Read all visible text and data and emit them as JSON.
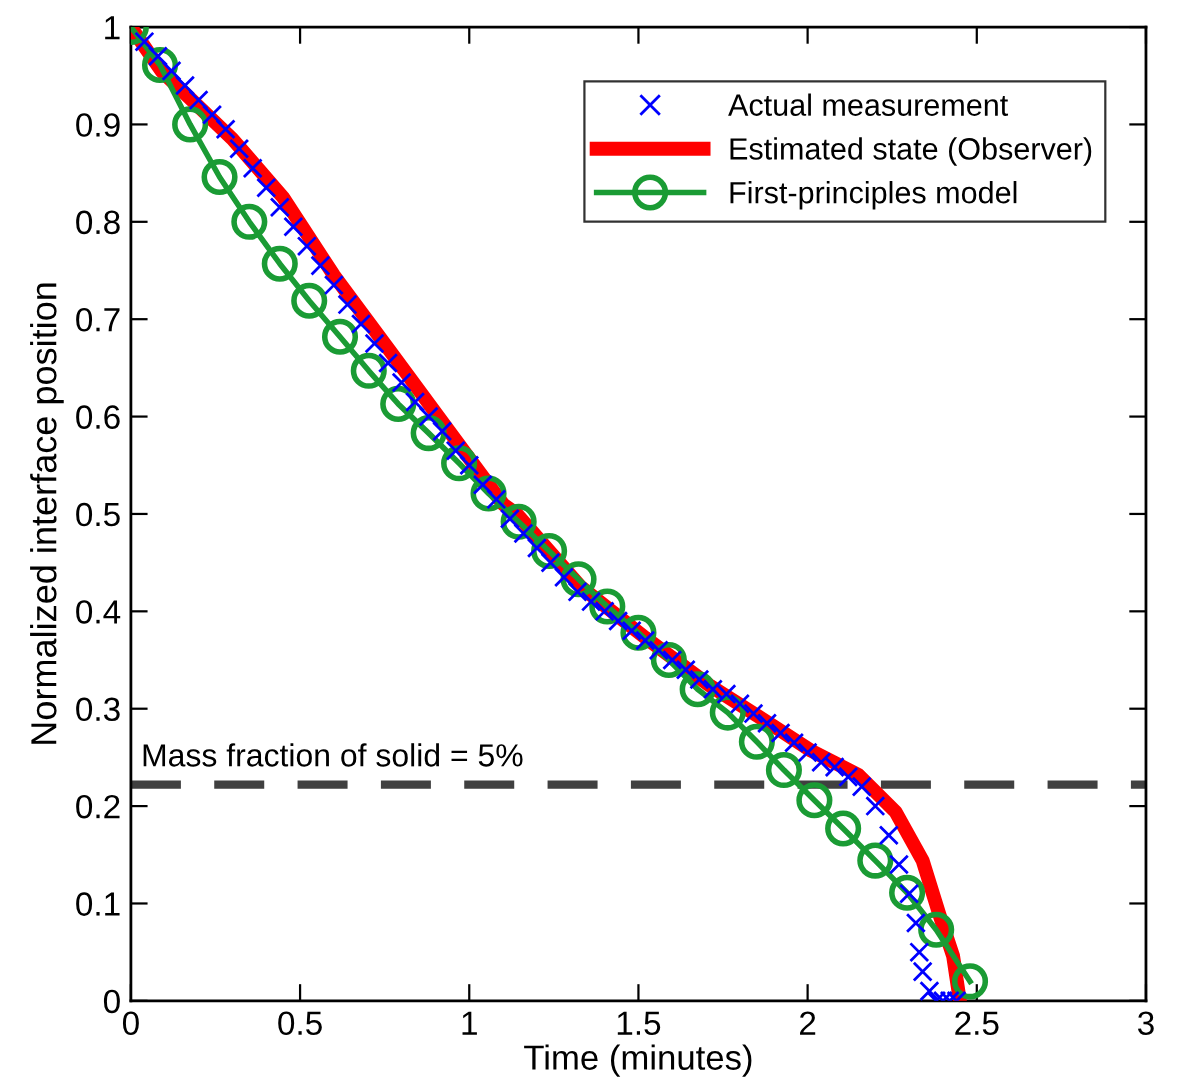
{
  "chart_data": {
    "type": "line",
    "xlabel": "Time (minutes)",
    "ylabel": "Normalized interface position",
    "xlim": [
      0,
      3
    ],
    "xticks": [
      0,
      0.5,
      1,
      1.5,
      2,
      2.5,
      3
    ],
    "ylim": [
      0,
      1
    ],
    "yticks": [
      0,
      0.1,
      0.2,
      0.3,
      0.4,
      0.5,
      0.6,
      0.7,
      0.8,
      0.9,
      1
    ],
    "grid": false,
    "legend": "top right",
    "series": [
      {
        "name": "Actual measurement",
        "type": "scatter",
        "marker": "cross",
        "color": "#0000ff",
        "x": [
          0.04,
          0.08,
          0.12,
          0.16,
          0.2,
          0.24,
          0.28,
          0.32,
          0.36,
          0.4,
          0.44,
          0.48,
          0.52,
          0.56,
          0.6,
          0.64,
          0.68,
          0.72,
          0.76,
          0.8,
          0.84,
          0.88,
          0.92,
          0.96,
          1.0,
          1.04,
          1.08,
          1.12,
          1.16,
          1.2,
          1.24,
          1.28,
          1.32,
          1.36,
          1.4,
          1.44,
          1.48,
          1.52,
          1.56,
          1.6,
          1.64,
          1.68,
          1.72,
          1.76,
          1.8,
          1.84,
          1.88,
          1.92,
          1.96,
          2.0,
          2.04,
          2.08,
          2.12,
          2.16,
          2.2,
          2.24,
          2.27,
          2.3,
          2.32,
          2.33,
          2.34,
          2.36,
          2.38,
          2.4,
          2.42,
          2.44
        ],
        "values": [
          0.985,
          0.97,
          0.955,
          0.94,
          0.925,
          0.91,
          0.895,
          0.875,
          0.855,
          0.835,
          0.815,
          0.795,
          0.775,
          0.755,
          0.735,
          0.715,
          0.695,
          0.675,
          0.655,
          0.635,
          0.615,
          0.6,
          0.585,
          0.565,
          0.55,
          0.53,
          0.515,
          0.495,
          0.48,
          0.465,
          0.45,
          0.435,
          0.42,
          0.41,
          0.4,
          0.39,
          0.38,
          0.37,
          0.36,
          0.35,
          0.34,
          0.33,
          0.32,
          0.315,
          0.305,
          0.295,
          0.285,
          0.275,
          0.265,
          0.255,
          0.245,
          0.24,
          0.23,
          0.22,
          0.2,
          0.17,
          0.14,
          0.11,
          0.08,
          0.05,
          0.03,
          0.01,
          0.0,
          0.0,
          0.0,
          0.0
        ]
      },
      {
        "name": "Estimated state (Observer)",
        "type": "line",
        "marker": "none",
        "line_style": "solid",
        "color": "#ff0000",
        "x": [
          0,
          0.09,
          0.3,
          0.45,
          0.6,
          0.76,
          0.93,
          1.1,
          1.14,
          1.33,
          1.52,
          1.71,
          1.9,
          2.01,
          2.15,
          2.26,
          2.34,
          2.39,
          2.43,
          2.45
        ],
        "values": [
          1.0,
          0.955,
          0.885,
          0.825,
          0.745,
          0.67,
          0.59,
          0.51,
          0.5,
          0.425,
          0.373,
          0.324,
          0.282,
          0.257,
          0.232,
          0.194,
          0.144,
          0.088,
          0.046,
          0.0
        ]
      },
      {
        "name": "First-principles model",
        "type": "line",
        "marker": "circle",
        "line_style": "solid",
        "color": "#1a9b34",
        "x": [
          0,
          0.086,
          0.175,
          0.262,
          0.35,
          0.44,
          0.527,
          0.618,
          0.703,
          0.79,
          0.88,
          0.97,
          1.057,
          1.146,
          1.236,
          1.323,
          1.408,
          1.5,
          1.59,
          1.675,
          1.764,
          1.85,
          1.93,
          2.02,
          2.105,
          2.2,
          2.294,
          2.38,
          2.48
        ],
        "values": [
          1.0,
          0.961,
          0.9,
          0.846,
          0.8,
          0.757,
          0.719,
          0.682,
          0.647,
          0.613,
          0.583,
          0.552,
          0.521,
          0.492,
          0.462,
          0.433,
          0.405,
          0.378,
          0.35,
          0.32,
          0.296,
          0.266,
          0.237,
          0.206,
          0.177,
          0.144,
          0.111,
          0.073,
          0.02
        ]
      }
    ],
    "annotations": [
      "Mass fraction of solid = 5%"
    ],
    "ref_lines": [
      {
        "axis": "y",
        "value": 0.222,
        "color": "#404040",
        "line_style": "dashed"
      }
    ]
  }
}
